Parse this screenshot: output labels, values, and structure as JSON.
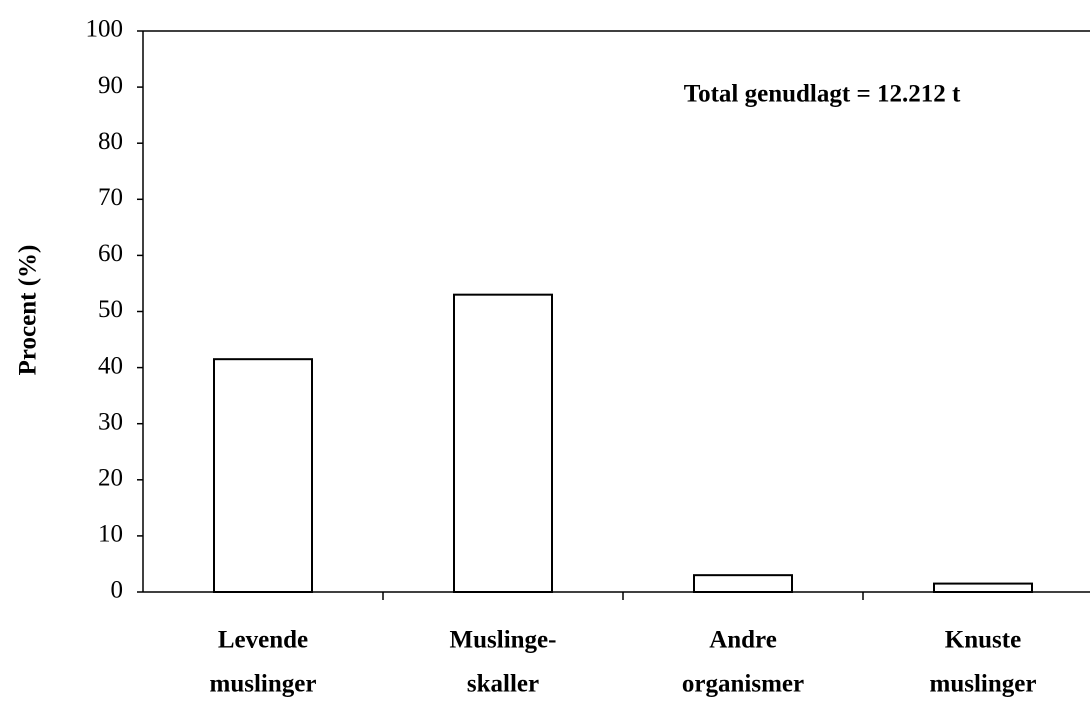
{
  "chart_data": {
    "type": "bar",
    "y_label": "Procent (%)",
    "annotation": "Total genudlagt = 12.212 t",
    "categories": [
      [
        "Levende",
        "muslinger"
      ],
      [
        "Muslinge-",
        "skaller"
      ],
      [
        "Andre",
        "organismer"
      ],
      [
        "Knuste",
        "muslinger"
      ]
    ],
    "values": [
      41.5,
      53,
      3,
      1.5
    ],
    "color": "#ffffff",
    "ylim": [
      0,
      100
    ],
    "yticks": [
      0,
      10,
      20,
      30,
      40,
      50,
      60,
      70,
      80,
      90,
      100
    ],
    "grid": false
  }
}
